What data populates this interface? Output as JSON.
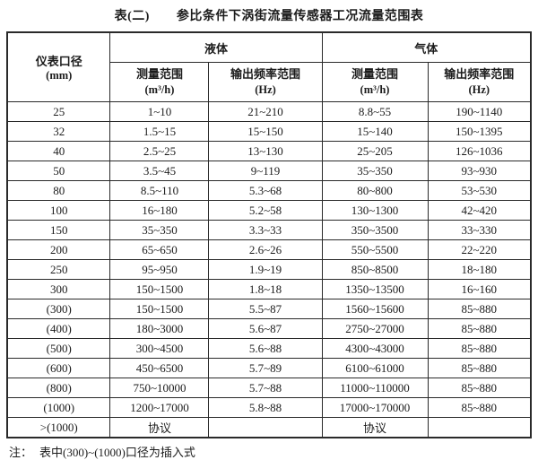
{
  "title": {
    "prefix": "表(二)",
    "text": "参比条件下涡街流量传感器工况流量范围表"
  },
  "table": {
    "diameter_header": {
      "line1": "仪表口径",
      "line2": "(mm)"
    },
    "groups": [
      {
        "label": "液体"
      },
      {
        "label": "气体"
      }
    ],
    "subheaders": [
      {
        "line1": "测量范围",
        "line2": "(m³/h)"
      },
      {
        "line1": "输出频率范围",
        "line2": "(Hz)"
      },
      {
        "line1": "测量范围",
        "line2": "(m³/h)"
      },
      {
        "line1": "输出频率范围",
        "line2": "(Hz)"
      }
    ],
    "rows": [
      [
        "25",
        "1~10",
        "21~210",
        "8.8~55",
        "190~1140"
      ],
      [
        "32",
        "1.5~15",
        "15~150",
        "15~140",
        "150~1395"
      ],
      [
        "40",
        "2.5~25",
        "13~130",
        "25~205",
        "126~1036"
      ],
      [
        "50",
        "3.5~45",
        "9~119",
        "35~350",
        "93~930"
      ],
      [
        "80",
        "8.5~110",
        "5.3~68",
        "80~800",
        "53~530"
      ],
      [
        "100",
        "16~180",
        "5.2~58",
        "130~1300",
        "42~420"
      ],
      [
        "150",
        "35~350",
        "3.3~33",
        "350~3500",
        "33~330"
      ],
      [
        "200",
        "65~650",
        "2.6~26",
        "550~5500",
        "22~220"
      ],
      [
        "250",
        "95~950",
        "1.9~19",
        "850~8500",
        "18~180"
      ],
      [
        "300",
        "150~1500",
        "1.8~18",
        "1350~13500",
        "16~160"
      ],
      [
        "(300)",
        "150~1500",
        "5.5~87",
        "1560~15600",
        "85~880"
      ],
      [
        "(400)",
        "180~3000",
        "5.6~87",
        "2750~27000",
        "85~880"
      ],
      [
        "(500)",
        "300~4500",
        "5.6~88",
        "4300~43000",
        "85~880"
      ],
      [
        "(600)",
        "450~6500",
        "5.7~89",
        "6100~61000",
        "85~880"
      ],
      [
        "(800)",
        "750~10000",
        "5.7~88",
        "11000~110000",
        "85~880"
      ],
      [
        "(1000)",
        "1200~17000",
        "5.8~88",
        "17000~170000",
        "85~880"
      ],
      [
        ">(1000)",
        "协议",
        "",
        "协议",
        ""
      ]
    ]
  },
  "note": {
    "label": "注：",
    "text": "表中(300)~(1000)口径为插入式"
  }
}
